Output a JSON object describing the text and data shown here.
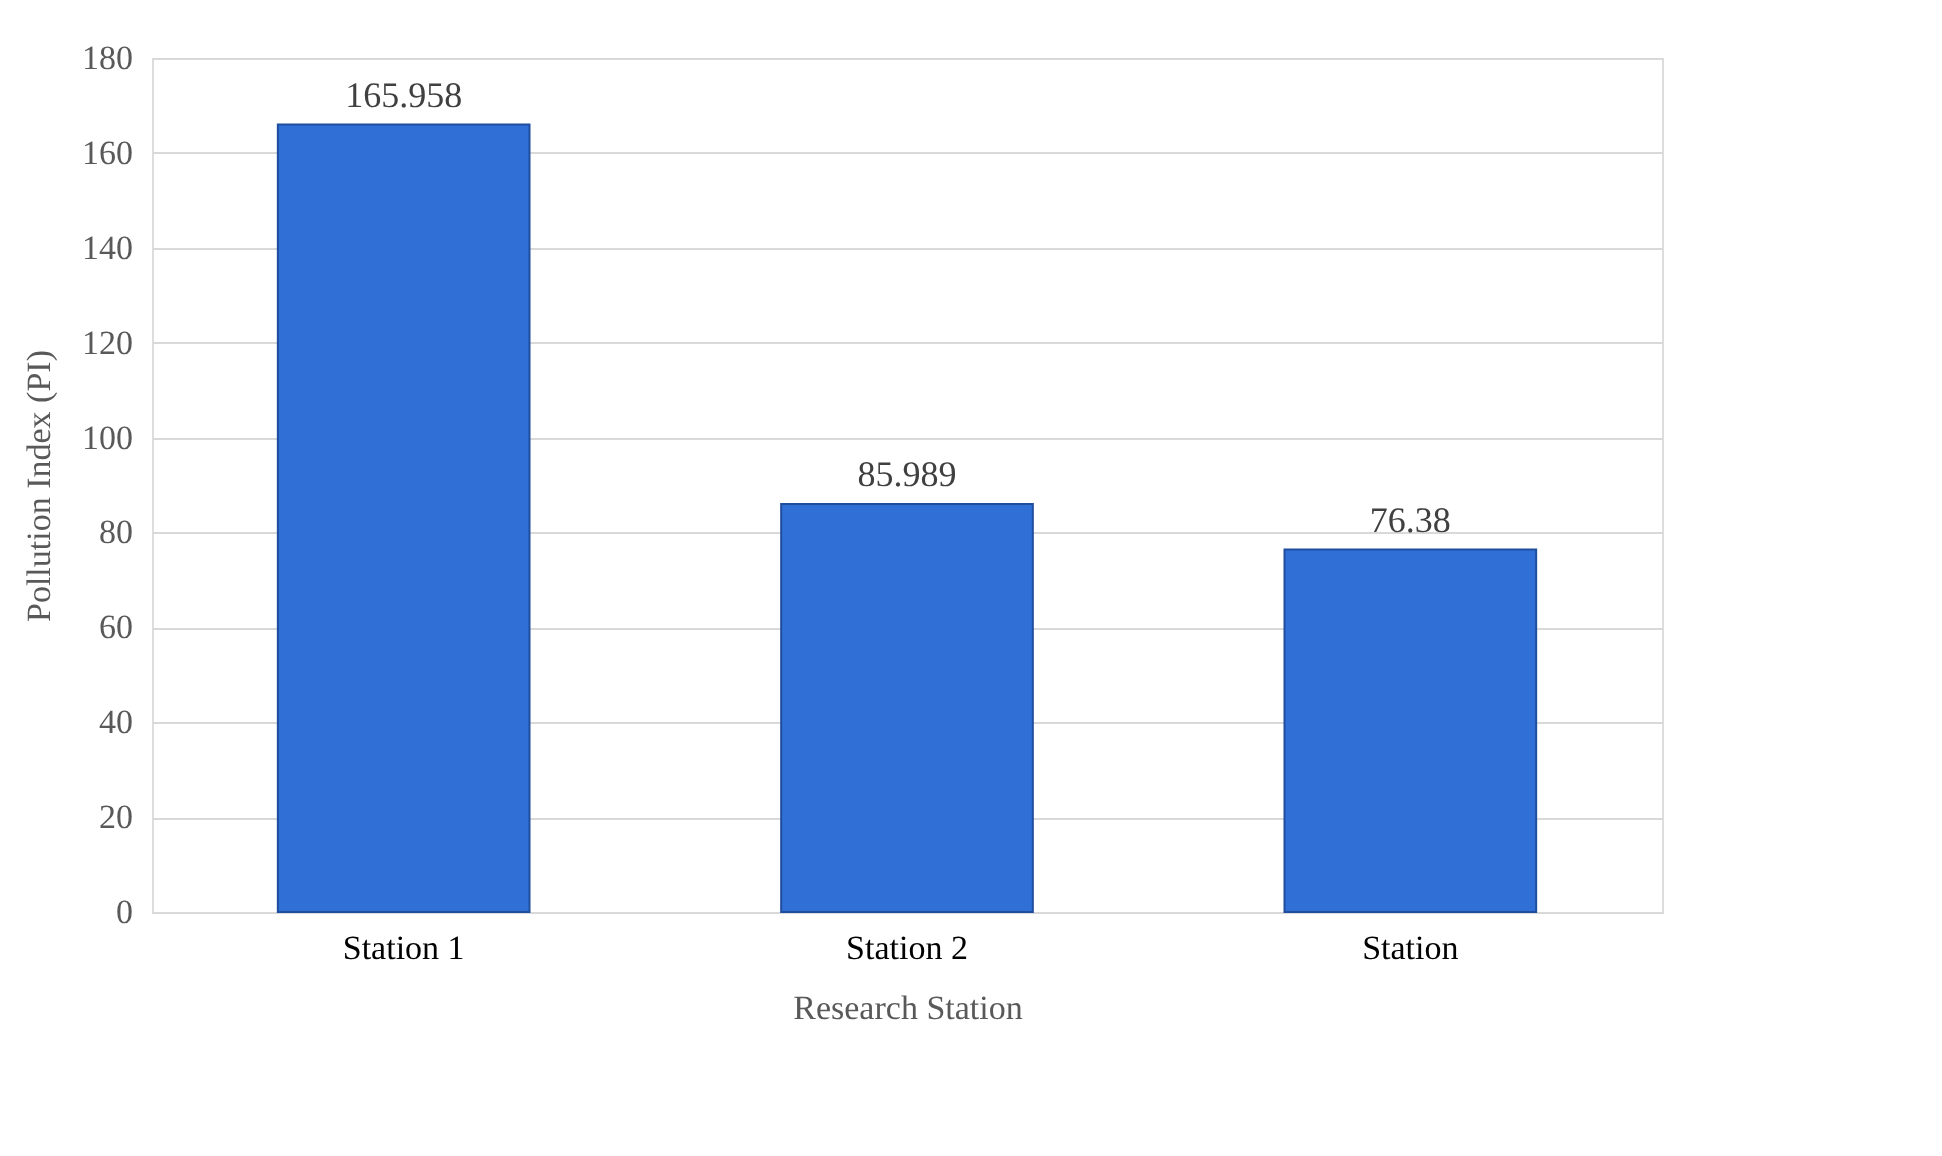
{
  "chart_data": {
    "type": "bar",
    "xlabel": "Research Station",
    "ylabel": "Pollution Index (PI)",
    "categories": [
      "Station 1",
      "Station 2",
      "Station"
    ],
    "values": [
      165.958,
      85.989,
      76.38
    ],
    "color": "#2f6fd6",
    "ylim": [
      0,
      180
    ],
    "yticks": [
      0,
      20,
      40,
      60,
      80,
      100,
      120,
      140,
      160,
      180
    ],
    "grid": "y",
    "data_labels": true
  }
}
